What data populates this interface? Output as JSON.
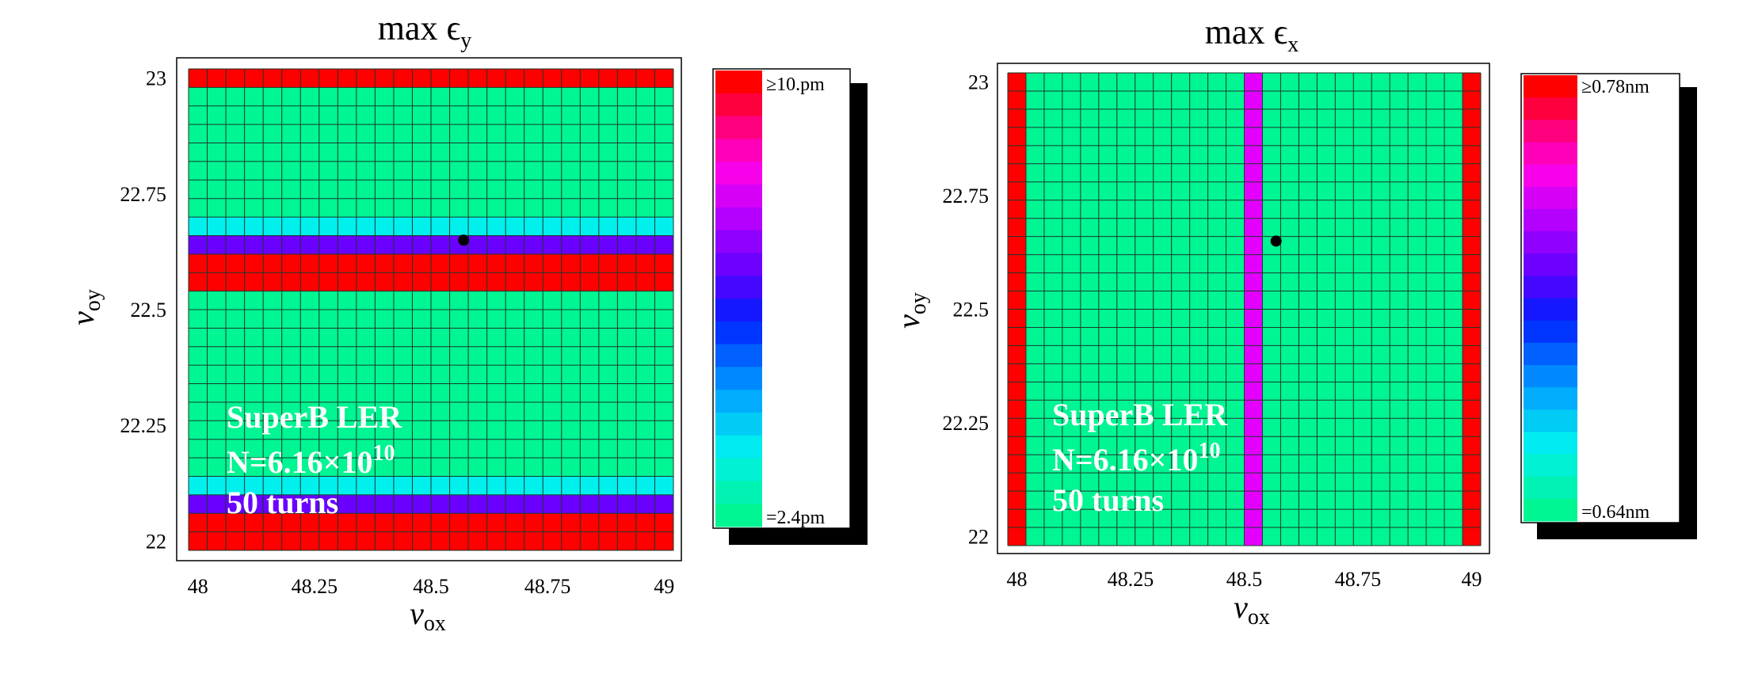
{
  "chart_data": [
    {
      "type": "heatmap",
      "title_main": "max ",
      "title_symbol": "ϵ",
      "title_sub": "y",
      "xlabel_symbol": "ν",
      "xlabel_sub": "ox",
      "ylabel_symbol": "ν",
      "ylabel_sub": "oy",
      "xlim": [
        48,
        49
      ],
      "ylim": [
        22,
        23
      ],
      "x_ticks": [
        "48",
        "48.25",
        "48.5",
        "48.75",
        "49"
      ],
      "y_ticks": [
        "22",
        "22.25",
        "22.5",
        "22.75",
        "23"
      ],
      "grid_cols": 26,
      "grid_rows": 26,
      "cell_rows_bottom_to_top": [
        "red",
        "red",
        "violet",
        "cyan",
        "green",
        "green",
        "green",
        "green",
        "green",
        "green",
        "green",
        "green",
        "green",
        "green",
        "red",
        "red",
        "violet",
        "cyan",
        "green",
        "green",
        "green",
        "green",
        "green",
        "green",
        "green",
        "red"
      ],
      "cell_columns_left_to_right": null,
      "working_point": {
        "x": 48.57,
        "y": 22.65
      },
      "annotation": [
        "SuperB LER",
        "N=6.16×10",
        "10",
        "50 turns"
      ],
      "colorbar": {
        "max_label": "≥10.pm",
        "min_label": "=2.4pm",
        "levels": 20
      },
      "colors": {
        "red": "#ff0000",
        "violet": "#6a00ff",
        "cyan": "#00f0ee",
        "green": "#00f593",
        "magenta": "#e400ff"
      }
    },
    {
      "type": "heatmap",
      "title_main": "max ",
      "title_symbol": "ϵ",
      "title_sub": "x",
      "xlabel_symbol": "ν",
      "xlabel_sub": "ox",
      "ylabel_symbol": "ν",
      "ylabel_sub": "oy",
      "xlim": [
        48,
        49
      ],
      "ylim": [
        22,
        23
      ],
      "x_ticks": [
        "48",
        "48.25",
        "48.5",
        "48.75",
        "49"
      ],
      "y_ticks": [
        "22",
        "22.25",
        "22.5",
        "22.75",
        "23"
      ],
      "grid_cols": 26,
      "grid_rows": 26,
      "cell_rows_bottom_to_top": null,
      "cell_columns_left_to_right": [
        "red",
        "green",
        "green",
        "green",
        "green",
        "green",
        "green",
        "green",
        "green",
        "green",
        "green",
        "green",
        "green",
        "magenta",
        "green",
        "green",
        "green",
        "green",
        "green",
        "green",
        "green",
        "green",
        "green",
        "green",
        "green",
        "red"
      ],
      "working_point": {
        "x": 48.57,
        "y": 22.65
      },
      "annotation": [
        "SuperB LER",
        "N=6.16×10",
        "10",
        "50 turns"
      ],
      "colorbar": {
        "max_label": "≥0.78nm",
        "min_label": "=0.64nm",
        "levels": 20
      },
      "colors": {
        "red": "#ff0000",
        "violet": "#6a00ff",
        "cyan": "#00f0ee",
        "green": "#00f593",
        "magenta": "#e400ff"
      }
    }
  ]
}
